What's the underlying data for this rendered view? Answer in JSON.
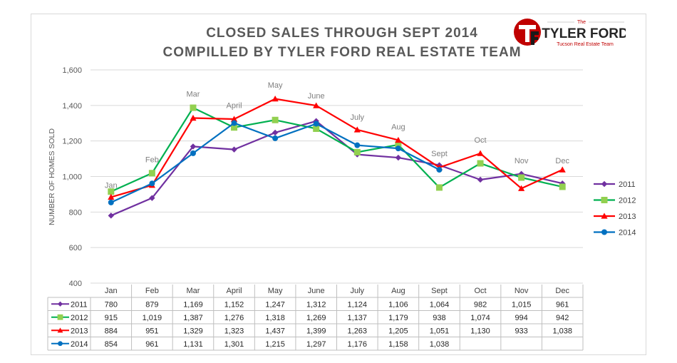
{
  "chart_data": {
    "type": "line",
    "title": "CLOSED SALES THROUGH SEPT 2014",
    "subtitle": "COMPILLED BY TYLER FORD REAL ESTATE TEAM",
    "ylabel": "NUMBER OF HOMES SOLD",
    "xlabel": "",
    "ylim": [
      400,
      1600
    ],
    "yticks": [
      "400",
      "600",
      "800",
      "1,000",
      "1,200",
      "1,400",
      "1,600"
    ],
    "grid": "horizontal",
    "legend_placement": "right",
    "categories": [
      "Jan",
      "Feb",
      "Mar",
      "April",
      "May",
      "June",
      "July",
      "Aug",
      "Sept",
      "Oct",
      "Nov",
      "Dec"
    ],
    "series": [
      {
        "name": "2011",
        "color": "#7030a0",
        "marker": "diamond",
        "values": [
          780,
          879,
          1169,
          1152,
          1247,
          1312,
          1124,
          1106,
          1064,
          982,
          1015,
          961
        ],
        "labels": [
          "780",
          "879",
          "1,169",
          "1,152",
          "1,247",
          "1,312",
          "1,124",
          "1,106",
          "1,064",
          "982",
          "1,015",
          "961"
        ]
      },
      {
        "name": "2012",
        "color": "#00b050",
        "marker": "square",
        "values": [
          915,
          1019,
          1387,
          1276,
          1318,
          1269,
          1137,
          1179,
          938,
          1074,
          994,
          942
        ],
        "labels": [
          "915",
          "1,019",
          "1,387",
          "1,276",
          "1,318",
          "1,269",
          "1,137",
          "1,179",
          "938",
          "1,074",
          "994",
          "942"
        ]
      },
      {
        "name": "2013",
        "color": "#ff0000",
        "marker": "triangle",
        "values": [
          884,
          951,
          1329,
          1323,
          1437,
          1399,
          1263,
          1205,
          1051,
          1130,
          933,
          1038
        ],
        "labels": [
          "884",
          "951",
          "1,329",
          "1,323",
          "1,437",
          "1,399",
          "1,263",
          "1,205",
          "1,051",
          "1,130",
          "933",
          "1,038"
        ]
      },
      {
        "name": "2014",
        "color": "#0070c0",
        "marker": "circle",
        "values": [
          854,
          961,
          1131,
          1301,
          1215,
          1297,
          1176,
          1158,
          1038,
          null,
          null,
          null
        ],
        "labels": [
          "854",
          "961",
          "1,131",
          "1,301",
          "1,215",
          "1,297",
          "1,176",
          "1,158",
          "1,038",
          "",
          "",
          ""
        ]
      }
    ],
    "annotations": [
      {
        "text": "Jan",
        "category": 0,
        "value": 935
      },
      {
        "text": "Feb",
        "category": 1,
        "value": 1080
      },
      {
        "text": "Mar",
        "category": 2,
        "value": 1450
      },
      {
        "text": "April",
        "category": 3,
        "value": 1385
      },
      {
        "text": "May",
        "category": 4,
        "value": 1500
      },
      {
        "text": "June",
        "category": 5,
        "value": 1440
      },
      {
        "text": "July",
        "category": 6,
        "value": 1320
      },
      {
        "text": "Aug",
        "category": 7,
        "value": 1265
      },
      {
        "text": "Sept",
        "category": 8,
        "value": 1115
      },
      {
        "text": "Oct",
        "category": 9,
        "value": 1190
      },
      {
        "text": "Nov",
        "category": 10,
        "value": 1075
      },
      {
        "text": "Dec",
        "category": 11,
        "value": 1075
      }
    ]
  },
  "logo": {
    "monogram": "TF",
    "the": "The",
    "name": "TYLER FORD",
    "tagline": "Tucson Real Estate Team",
    "accent_color": "#c00000"
  }
}
